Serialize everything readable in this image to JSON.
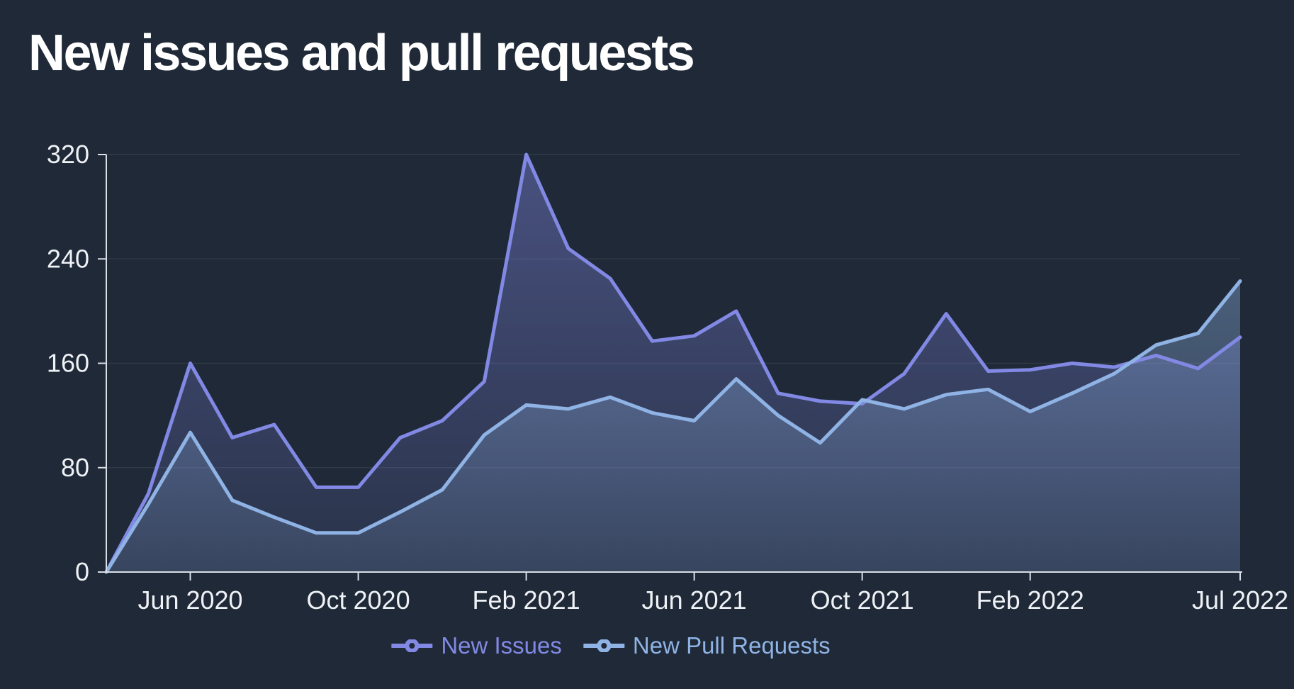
{
  "title": "New issues and pull requests",
  "colors": {
    "background": "#1f2937",
    "grid": "rgba(255,255,255,0.08)",
    "axis": "#d9dee7",
    "axis_text": "#eef1f5",
    "title_text": "#ffffff",
    "issues_line": "#8289e4",
    "pull_requests_line": "#8fb3e4"
  },
  "chart_data": {
    "type": "area",
    "title": "New issues and pull requests",
    "xlabel": "",
    "ylabel": "",
    "grid": true,
    "legend_position": "bottom",
    "ylim": [
      0,
      320
    ],
    "y_ticks": [
      0,
      80,
      160,
      240,
      320
    ],
    "x": [
      "Apr 2020",
      "May 2020",
      "Jun 2020",
      "Jul 2020",
      "Aug 2020",
      "Sep 2020",
      "Oct 2020",
      "Nov 2020",
      "Dec 2020",
      "Jan 2021",
      "Feb 2021",
      "Mar 2021",
      "Apr 2021",
      "May 2021",
      "Jun 2021",
      "Jul 2021",
      "Aug 2021",
      "Sep 2021",
      "Oct 2021",
      "Nov 2021",
      "Dec 2021",
      "Jan 2022",
      "Feb 2022",
      "Mar 2022",
      "Apr 2022",
      "May 2022",
      "Jun 2022",
      "Jul 2022"
    ],
    "x_ticks": [
      {
        "i": 2,
        "label": "Jun 2020"
      },
      {
        "i": 6,
        "label": "Oct 2020"
      },
      {
        "i": 10,
        "label": "Feb 2021"
      },
      {
        "i": 14,
        "label": "Jun 2021"
      },
      {
        "i": 18,
        "label": "Oct 2021"
      },
      {
        "i": 22,
        "label": "Feb 2022"
      },
      {
        "i": 27,
        "label": "Jul 2022"
      }
    ],
    "series": [
      {
        "name": "New Issues",
        "color": "#8289e4",
        "values": [
          0,
          60,
          160,
          103,
          113,
          65,
          65,
          103,
          116,
          146,
          320,
          248,
          225,
          177,
          181,
          200,
          137,
          131,
          129,
          152,
          198,
          154,
          155,
          160,
          157,
          166,
          156,
          180
        ]
      },
      {
        "name": "New Pull Requests",
        "color": "#8fb3e4",
        "values": [
          0,
          52,
          107,
          55,
          42,
          30,
          30,
          46,
          63,
          105,
          128,
          125,
          134,
          122,
          116,
          148,
          120,
          99,
          132,
          125,
          136,
          140,
          123,
          137,
          152,
          174,
          183,
          223
        ]
      }
    ]
  },
  "legend": {
    "items": [
      {
        "label": "New Issues"
      },
      {
        "label": "New Pull Requests"
      }
    ]
  }
}
